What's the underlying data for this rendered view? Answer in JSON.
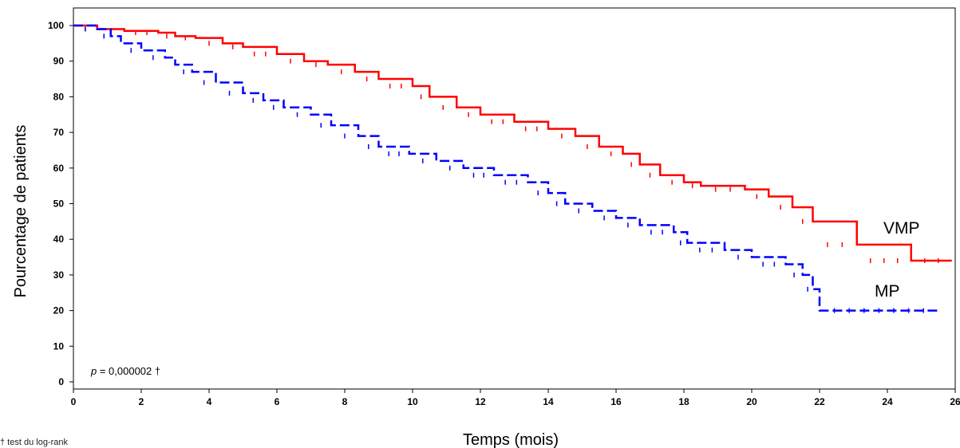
{
  "chart_data": {
    "type": "line",
    "title": "",
    "xlabel": "Temps (mois)",
    "ylabel": "Pourcentage de patients",
    "xlim": [
      0,
      26
    ],
    "ylim": [
      0,
      100
    ],
    "x_ticks": [
      0,
      2,
      4,
      6,
      8,
      10,
      12,
      14,
      16,
      18,
      20,
      22,
      24,
      26
    ],
    "y_ticks": [
      0,
      10,
      20,
      30,
      40,
      50,
      60,
      70,
      80,
      90,
      100
    ],
    "grid": false,
    "annotation": {
      "p_symbol": "p",
      "p_value_text": " = 0,000002 †"
    },
    "footnote": "† test du log-rank",
    "series": [
      {
        "name": "VMP",
        "color": "#ff0000",
        "dash": "solid",
        "x": [
          0,
          0.7,
          1.5,
          2.5,
          3.0,
          3.6,
          4.4,
          5.0,
          6.0,
          6.8,
          7.5,
          8.3,
          9.0,
          10.0,
          10.5,
          11.3,
          12.0,
          13.0,
          14.0,
          14.8,
          15.5,
          16.2,
          16.7,
          17.3,
          18.0,
          18.5,
          19.8,
          20.5,
          21.2,
          21.8,
          23.1,
          24.7,
          25.9
        ],
        "y": [
          100,
          99,
          98.5,
          98,
          97,
          96.5,
          95,
          94,
          92,
          90,
          89,
          87,
          85,
          83,
          80,
          77,
          75,
          73,
          71,
          69,
          66,
          64,
          61,
          58,
          56,
          55,
          54,
          52,
          49,
          45,
          38.5,
          34,
          34
        ]
      },
      {
        "name": "MP",
        "color": "#0000ff",
        "dash": "dashed",
        "x": [
          0,
          0.7,
          1.1,
          1.4,
          2.0,
          2.7,
          3.0,
          3.5,
          4.2,
          5.0,
          5.6,
          6.2,
          7.0,
          7.6,
          8.4,
          9.0,
          9.9,
          10.7,
          11.5,
          12.4,
          13.4,
          14.0,
          14.5,
          15.3,
          16.0,
          16.7,
          17.7,
          18.1,
          19.2,
          20.0,
          21.0,
          21.5,
          21.8,
          22.0,
          25.5
        ],
        "y": [
          100,
          99,
          97,
          95,
          93,
          91,
          89,
          87,
          84,
          81,
          79,
          77,
          75,
          72,
          69,
          66,
          64,
          62,
          60,
          58,
          56,
          53,
          50,
          48,
          46,
          44,
          42,
          39,
          37,
          35,
          33,
          30,
          26,
          20,
          20
        ]
      }
    ]
  }
}
